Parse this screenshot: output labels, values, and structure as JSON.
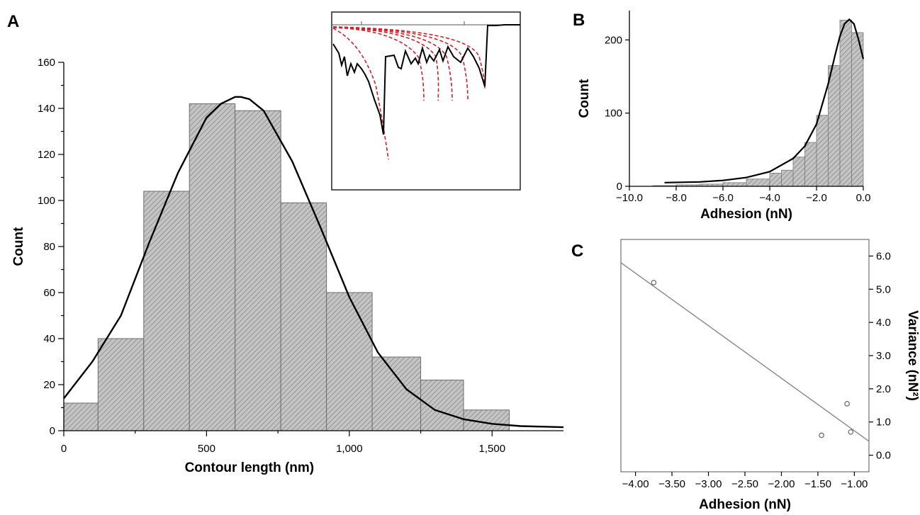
{
  "chart_data": [
    {
      "panel": "A",
      "type": "bar",
      "xlabel": "Contour length (nm)",
      "ylabel": "Count",
      "xlim": [
        0,
        1750
      ],
      "ylim": [
        0,
        160
      ],
      "x_ticks": [
        0,
        500,
        1000,
        1500
      ],
      "x_tick_labels": [
        "0",
        "500",
        "1,000",
        "1,500"
      ],
      "y_ticks": [
        0,
        20,
        40,
        60,
        80,
        100,
        120,
        140,
        160
      ],
      "bins": [
        {
          "x0": 0,
          "x1": 120,
          "value": 12
        },
        {
          "x0": 120,
          "x1": 280,
          "value": 40
        },
        {
          "x0": 280,
          "x1": 440,
          "value": 104
        },
        {
          "x0": 440,
          "x1": 600,
          "value": 142
        },
        {
          "x0": 600,
          "x1": 760,
          "value": 139
        },
        {
          "x0": 760,
          "x1": 920,
          "value": 99
        },
        {
          "x0": 920,
          "x1": 1080,
          "value": 60
        },
        {
          "x0": 1080,
          "x1": 1250,
          "value": 32
        },
        {
          "x0": 1250,
          "x1": 1400,
          "value": 22
        },
        {
          "x0": 1400,
          "x1": 1560,
          "value": 9
        }
      ],
      "fit_curve": {
        "x": [
          0,
          100,
          200,
          300,
          400,
          500,
          550,
          600,
          620,
          650,
          700,
          800,
          900,
          1000,
          1100,
          1200,
          1300,
          1400,
          1500,
          1600,
          1750
        ],
        "y": [
          14,
          30,
          50,
          82,
          112,
          136,
          142,
          145,
          145,
          144,
          139,
          117,
          88,
          58,
          34,
          18,
          9,
          5,
          3,
          2,
          1.5
        ]
      },
      "inset": {
        "description_free": true,
        "curve_color": "#000000",
        "fit_color": "#d0202a"
      }
    },
    {
      "panel": "B",
      "type": "bar",
      "xlabel": "Adhesion (nN)",
      "ylabel": "Count",
      "xlim": [
        -10,
        0
      ],
      "ylim": [
        0,
        240
      ],
      "x_ticks": [
        -10,
        -8,
        -6,
        -4,
        -2,
        0
      ],
      "x_tick_labels": [
        "−10.0",
        "−8.0",
        "−6.0",
        "−4.0",
        "−2.0",
        "0.0"
      ],
      "y_ticks": [
        0,
        100,
        200
      ],
      "bins": [
        {
          "x0": -9.0,
          "x1": -8.0,
          "value": 1
        },
        {
          "x0": -8.0,
          "x1": -7.0,
          "value": 2
        },
        {
          "x0": -7.0,
          "x1": -6.0,
          "value": 3
        },
        {
          "x0": -6.0,
          "x1": -5.0,
          "value": 5
        },
        {
          "x0": -5.0,
          "x1": -4.0,
          "value": 10
        },
        {
          "x0": -4.0,
          "x1": -3.5,
          "value": 18
        },
        {
          "x0": -3.5,
          "x1": -3.0,
          "value": 22
        },
        {
          "x0": -3.0,
          "x1": -2.5,
          "value": 40
        },
        {
          "x0": -2.5,
          "x1": -2.0,
          "value": 60
        },
        {
          "x0": -2.0,
          "x1": -1.5,
          "value": 97
        },
        {
          "x0": -1.5,
          "x1": -1.0,
          "value": 165
        },
        {
          "x0": -1.0,
          "x1": -0.5,
          "value": 227
        },
        {
          "x0": -0.5,
          "x1": 0.0,
          "value": 210
        }
      ],
      "fit_curve": {
        "x": [
          -8.5,
          -7.0,
          -6.0,
          -5.0,
          -4.0,
          -3.0,
          -2.5,
          -2.0,
          -1.5,
          -1.2,
          -1.0,
          -0.8,
          -0.6,
          -0.4,
          -0.2,
          0.0
        ],
        "y": [
          5,
          6,
          8,
          12,
          20,
          38,
          55,
          85,
          140,
          180,
          205,
          222,
          228,
          222,
          200,
          174
        ]
      }
    },
    {
      "panel": "C",
      "type": "scatter",
      "xlabel": "Adhesion (nN)",
      "ylabel": "Variance (nN²)",
      "xlim": [
        -4.2,
        -0.8
      ],
      "ylim": [
        -0.5,
        6.5
      ],
      "x_ticks": [
        -4.0,
        -3.5,
        -3.0,
        -2.5,
        -2.0,
        -1.5,
        -1.0
      ],
      "x_tick_labels": [
        "−4.00",
        "−3.50",
        "−3.00",
        "−2.50",
        "−2.00",
        "−1.50",
        "−1.00"
      ],
      "y_ticks": [
        0,
        1,
        2,
        3,
        4,
        5,
        6
      ],
      "y_tick_labels": [
        "0.0",
        "1.0",
        "2.0",
        "3.0",
        "4.0",
        "5.0",
        "6.0"
      ],
      "points": [
        {
          "x": -3.75,
          "y": 5.2
        },
        {
          "x": -1.45,
          "y": 0.6
        },
        {
          "x": -1.1,
          "y": 1.55
        },
        {
          "x": -1.05,
          "y": 0.7
        }
      ],
      "fit_line": {
        "x": [
          -4.2,
          -0.8
        ],
        "y": [
          5.8,
          0.42
        ]
      }
    }
  ],
  "labels": {
    "A": "A",
    "B": "B",
    "C": "C"
  }
}
